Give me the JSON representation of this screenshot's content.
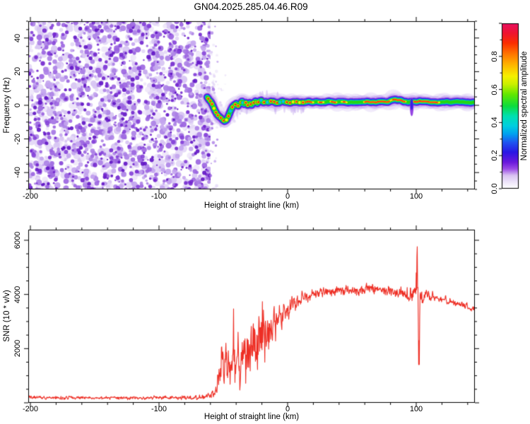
{
  "title": "GN04.2025.285.04.46.R09",
  "colors": {
    "snr_line": "#ee2e24",
    "axis": "#000000",
    "background": "#ffffff",
    "speckle_light": [
      "#efe8fa",
      "#e4d8f7",
      "#d8c6f3"
    ],
    "speckle_medium": [
      "#c3a4ee",
      "#ab7fe6",
      "#9a63e0"
    ],
    "speckle_dark": [
      "#8440d8",
      "#7226ce",
      "#5f12c4"
    ],
    "band_fringe1": "#e3d7f7",
    "band_fringe2": "#c5a8ef",
    "band_purple": "#8a30e0",
    "band_blue": "#2a20e6",
    "band_cyan": "#00c2ea",
    "band_teal": "#00dc78",
    "band_green": "#24d414",
    "band_yellow": "#f2ee00",
    "band_red": "#ff2014"
  },
  "chart_data": [
    {
      "type": "heatmap",
      "title": "GN04.2025.285.04.46.R09",
      "xlabel": "Height of straight line (km)",
      "ylabel": "Frequency (Hz)",
      "xlim": [
        -200,
        145
      ],
      "ylim": [
        -50,
        50
      ],
      "xticks_major": [
        -200,
        -100,
        0,
        100
      ],
      "xtick_minor_step": 20,
      "yticks_major": [
        40,
        20,
        0,
        -20,
        -40
      ],
      "ytick_minor_step": 5,
      "grid": false,
      "colorbar": {
        "label": "Normalized spectral amplitude",
        "ticks": [
          "0.0",
          "0.2",
          "0.4",
          "0.6",
          "0.8"
        ],
        "tick_values": [
          0.0,
          0.2,
          0.4,
          0.6,
          0.8
        ],
        "range": [
          0,
          1
        ],
        "stops": [
          {
            "v": 0.0,
            "c": "#ffffff"
          },
          {
            "v": 0.03,
            "c": "#f3edfc"
          },
          {
            "v": 0.08,
            "c": "#d9c2f2"
          },
          {
            "v": 0.12,
            "c": "#9b4ae6"
          },
          {
            "v": 0.16,
            "c": "#6a18dc"
          },
          {
            "v": 0.22,
            "c": "#2b16e4"
          },
          {
            "v": 0.28,
            "c": "#1e55f0"
          },
          {
            "v": 0.33,
            "c": "#00a0f0"
          },
          {
            "v": 0.38,
            "c": "#00cfe0"
          },
          {
            "v": 0.44,
            "c": "#00e0b0"
          },
          {
            "v": 0.5,
            "c": "#0ddc3c"
          },
          {
            "v": 0.57,
            "c": "#62e800"
          },
          {
            "v": 0.63,
            "c": "#c8f000"
          },
          {
            "v": 0.68,
            "c": "#f6f000"
          },
          {
            "v": 0.75,
            "c": "#ffb400"
          },
          {
            "v": 0.82,
            "c": "#ff7000"
          },
          {
            "v": 0.88,
            "c": "#fb2e00"
          },
          {
            "v": 0.94,
            "c": "#ef1430"
          },
          {
            "v": 1.0,
            "c": "#e81060"
          }
        ]
      },
      "noise_region": {
        "x_range": [
          -200,
          -61
        ],
        "y_range": [
          -50,
          50
        ],
        "style": "purple-speckle",
        "coverage": 0.6
      },
      "trace_note": "head-echo spectral trace, frequency (Hz) vs height (km)",
      "trace": [
        [
          -62.5,
          5
        ],
        [
          -61,
          3.5
        ],
        [
          -59.5,
          2
        ],
        [
          -58,
          -0.5
        ],
        [
          -56.5,
          -3
        ],
        [
          -55,
          -5
        ],
        [
          -53.5,
          -6.5
        ],
        [
          -52,
          -7.5
        ],
        [
          -50.5,
          -8.5
        ],
        [
          -49,
          -9
        ],
        [
          -47.5,
          -8
        ],
        [
          -46,
          -6
        ],
        [
          -44.5,
          -3.5
        ],
        [
          -43,
          -1
        ],
        [
          -41.5,
          0.5
        ],
        [
          -40,
          1.5
        ],
        [
          -38.5,
          0
        ],
        [
          -37,
          1
        ],
        [
          -35.5,
          2.5
        ],
        [
          -34,
          1
        ],
        [
          -32.5,
          2
        ],
        [
          -31,
          0.5
        ],
        [
          -29.5,
          2
        ],
        [
          -28,
          0.5
        ],
        [
          -26.5,
          1.5
        ],
        [
          -25,
          2.5
        ],
        [
          -23.5,
          1
        ],
        [
          -22,
          2
        ],
        [
          -20.5,
          2.5
        ],
        [
          -19,
          1.5
        ],
        [
          -17,
          2
        ],
        [
          -15,
          1.5
        ],
        [
          -13,
          2
        ],
        [
          -10,
          1.8
        ],
        [
          -7,
          1.4
        ],
        [
          -4,
          2
        ],
        [
          0,
          1.8
        ],
        [
          5,
          2
        ],
        [
          10,
          1.8
        ],
        [
          16,
          2
        ],
        [
          24,
          1.9
        ],
        [
          32,
          2
        ],
        [
          40,
          2
        ],
        [
          48,
          2
        ],
        [
          56,
          2
        ],
        [
          64,
          2
        ],
        [
          72,
          2.1
        ],
        [
          78,
          2.4
        ],
        [
          81,
          3.2
        ],
        [
          84,
          3.8
        ],
        [
          87,
          3
        ],
        [
          90,
          2.2
        ],
        [
          93,
          2
        ],
        [
          96,
          1.6
        ],
        [
          99,
          2
        ],
        [
          104,
          2.1
        ],
        [
          110,
          2
        ],
        [
          118,
          2
        ],
        [
          126,
          2
        ],
        [
          134,
          2
        ],
        [
          140,
          2
        ],
        [
          145,
          2
        ]
      ],
      "blob_region_km": [
        -62.5,
        13
      ],
      "hot_segments_km": [
        [
          13,
          20
        ],
        [
          23.5,
          28
        ],
        [
          33,
          38.5
        ],
        [
          42,
          46
        ],
        [
          59,
          80
        ],
        [
          80.5,
          92
        ],
        [
          97.5,
          118
        ]
      ],
      "glitch": {
        "km": 96.5,
        "hz_range": [
          -7,
          5
        ]
      }
    },
    {
      "type": "line",
      "xlabel": "Height of straight line (km)",
      "ylabel": "SNR (10 * v/v)",
      "xlim": [
        -200,
        145
      ],
      "ylim": [
        0,
        6400
      ],
      "xticks_major": [
        -200,
        -100,
        0,
        100
      ],
      "xtick_minor_step": 20,
      "yticks_major": [
        2000,
        4000,
        6000
      ],
      "ytick_minor_step": 500,
      "grid": false,
      "series_name": "SNR",
      "envelope_note": "control points [km, mean, noise_half_amplitude] of the noisy red curve",
      "envelope": [
        [
          -200,
          185,
          75
        ],
        [
          -120,
          185,
          75
        ],
        [
          -75,
          195,
          80
        ],
        [
          -63,
          230,
          110
        ],
        [
          -58,
          320,
          200
        ],
        [
          -55,
          520,
          380
        ],
        [
          -53,
          900,
          700
        ],
        [
          -51,
          1500,
          1100
        ],
        [
          -49.5,
          700,
          500
        ],
        [
          -48,
          1600,
          1200
        ],
        [
          -46.5,
          900,
          650
        ],
        [
          -45,
          1700,
          1200
        ],
        [
          -43.5,
          1100,
          800
        ],
        [
          -42,
          2000,
          1500
        ],
        [
          -40.5,
          1100,
          850
        ],
        [
          -39,
          2100,
          1600
        ],
        [
          -37.5,
          1100,
          800
        ],
        [
          -36,
          1600,
          1100
        ],
        [
          -34,
          1800,
          1200
        ],
        [
          -32,
          1600,
          1000
        ],
        [
          -30,
          2000,
          1300
        ],
        [
          -28,
          1800,
          1200
        ],
        [
          -26,
          2400,
          1500
        ],
        [
          -24,
          2000,
          1400
        ],
        [
          -22,
          2800,
          1500
        ],
        [
          -20.5,
          2300,
          1600
        ],
        [
          -19,
          2900,
          1400
        ],
        [
          -17,
          2500,
          1200
        ],
        [
          -15,
          2700,
          1000
        ],
        [
          -13,
          2600,
          900
        ],
        [
          -11,
          2900,
          800
        ],
        [
          -9,
          2800,
          700
        ],
        [
          -7,
          3100,
          650
        ],
        [
          -5,
          3000,
          600
        ],
        [
          -3,
          3200,
          550
        ],
        [
          -1,
          3350,
          500
        ],
        [
          1,
          3450,
          450
        ],
        [
          4,
          3600,
          400
        ],
        [
          7,
          3700,
          380
        ],
        [
          10,
          3800,
          330
        ],
        [
          14,
          3950,
          280
        ],
        [
          18,
          4020,
          250
        ],
        [
          24,
          4080,
          220
        ],
        [
          32,
          4120,
          210
        ],
        [
          40,
          4150,
          200
        ],
        [
          48,
          4120,
          210
        ],
        [
          56,
          4180,
          220
        ],
        [
          62,
          4250,
          240
        ],
        [
          68,
          4220,
          230
        ],
        [
          74,
          4180,
          220
        ],
        [
          80,
          4150,
          230
        ],
        [
          86,
          4080,
          260
        ],
        [
          90,
          4020,
          280
        ],
        [
          94,
          3980,
          340
        ],
        [
          97,
          4050,
          450
        ],
        [
          99,
          4200,
          600
        ],
        [
          104,
          3950,
          400
        ],
        [
          107,
          4000,
          260
        ],
        [
          112,
          3920,
          210
        ],
        [
          118,
          3850,
          190
        ],
        [
          125,
          3750,
          180
        ],
        [
          132,
          3650,
          170
        ],
        [
          139,
          3550,
          160
        ],
        [
          145,
          3470,
          160
        ]
      ],
      "spike_event": [
        [
          99.3,
          4300
        ],
        [
          99.7,
          3900
        ],
        [
          100.0,
          4800
        ],
        [
          100.25,
          4100
        ],
        [
          100.5,
          5600
        ],
        [
          100.7,
          4300
        ],
        [
          100.85,
          6380
        ],
        [
          101.0,
          5000
        ],
        [
          101.15,
          3400
        ],
        [
          101.35,
          4300
        ],
        [
          101.5,
          2400
        ],
        [
          101.7,
          3600
        ],
        [
          101.9,
          1100
        ],
        [
          102.1,
          2900
        ],
        [
          102.3,
          260
        ],
        [
          102.55,
          2500
        ],
        [
          102.8,
          3600
        ],
        [
          103.1,
          4300
        ],
        [
          103.4,
          3800
        ],
        [
          103.7,
          4000
        ]
      ]
    }
  ]
}
